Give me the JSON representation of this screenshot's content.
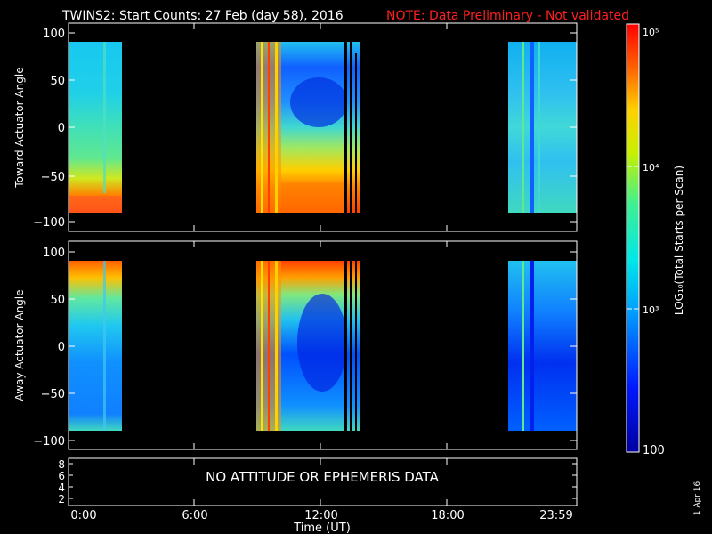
{
  "header": {
    "title": "TWINS2: Start Counts: 27 Feb (day  58), 2016",
    "note": "NOTE: Data Preliminary - Not validated",
    "note_color": "#ff2020"
  },
  "date_stamp": "1 Apr 16",
  "chart_data": [
    {
      "type": "heatmap",
      "ylabel": "Toward Actuator Angle",
      "ylim": [
        -110,
        110
      ],
      "yticks": [
        "100",
        "50",
        "0",
        "−50",
        "−100"
      ],
      "data_blocks_hours": [
        [
          0.0,
          2.45
        ],
        [
          8.85,
          13.95
        ],
        [
          21.0,
          24.0
        ]
      ],
      "notes": "High counts (red) near -90 deg; low counts (blue) at mid angles"
    },
    {
      "type": "heatmap",
      "ylabel": "Away Actuator Angle",
      "ylim": [
        -110,
        110
      ],
      "yticks": [
        "100",
        "50",
        "0",
        "−50",
        "−100"
      ],
      "data_blocks_hours": [
        [
          0.0,
          2.45
        ],
        [
          8.85,
          13.95
        ],
        [
          21.0,
          24.0
        ]
      ],
      "notes": "High counts (red) near +90 deg; low counts (blue) below 0 deg"
    },
    {
      "type": "table",
      "yticks": [
        "8",
        "6",
        "4",
        "2"
      ],
      "message": "NO ATTITUDE OR EPHEMERIS DATA"
    }
  ],
  "xaxis": {
    "label": "Time (UT)",
    "ticks": [
      "0:00",
      "6:00",
      "12:00",
      "18:00",
      "23:59"
    ],
    "range_hours": [
      0,
      24
    ]
  },
  "colorbar": {
    "label": "LOG₁₀(Total Starts per Scan)",
    "ticks": [
      {
        "text": "10⁵",
        "value": 100000
      },
      {
        "text": "10⁴",
        "value": 10000
      },
      {
        "text": "10³",
        "value": 1000
      },
      {
        "text": "100",
        "value": 100
      }
    ],
    "range": [
      100,
      100000
    ],
    "scale": "log"
  }
}
